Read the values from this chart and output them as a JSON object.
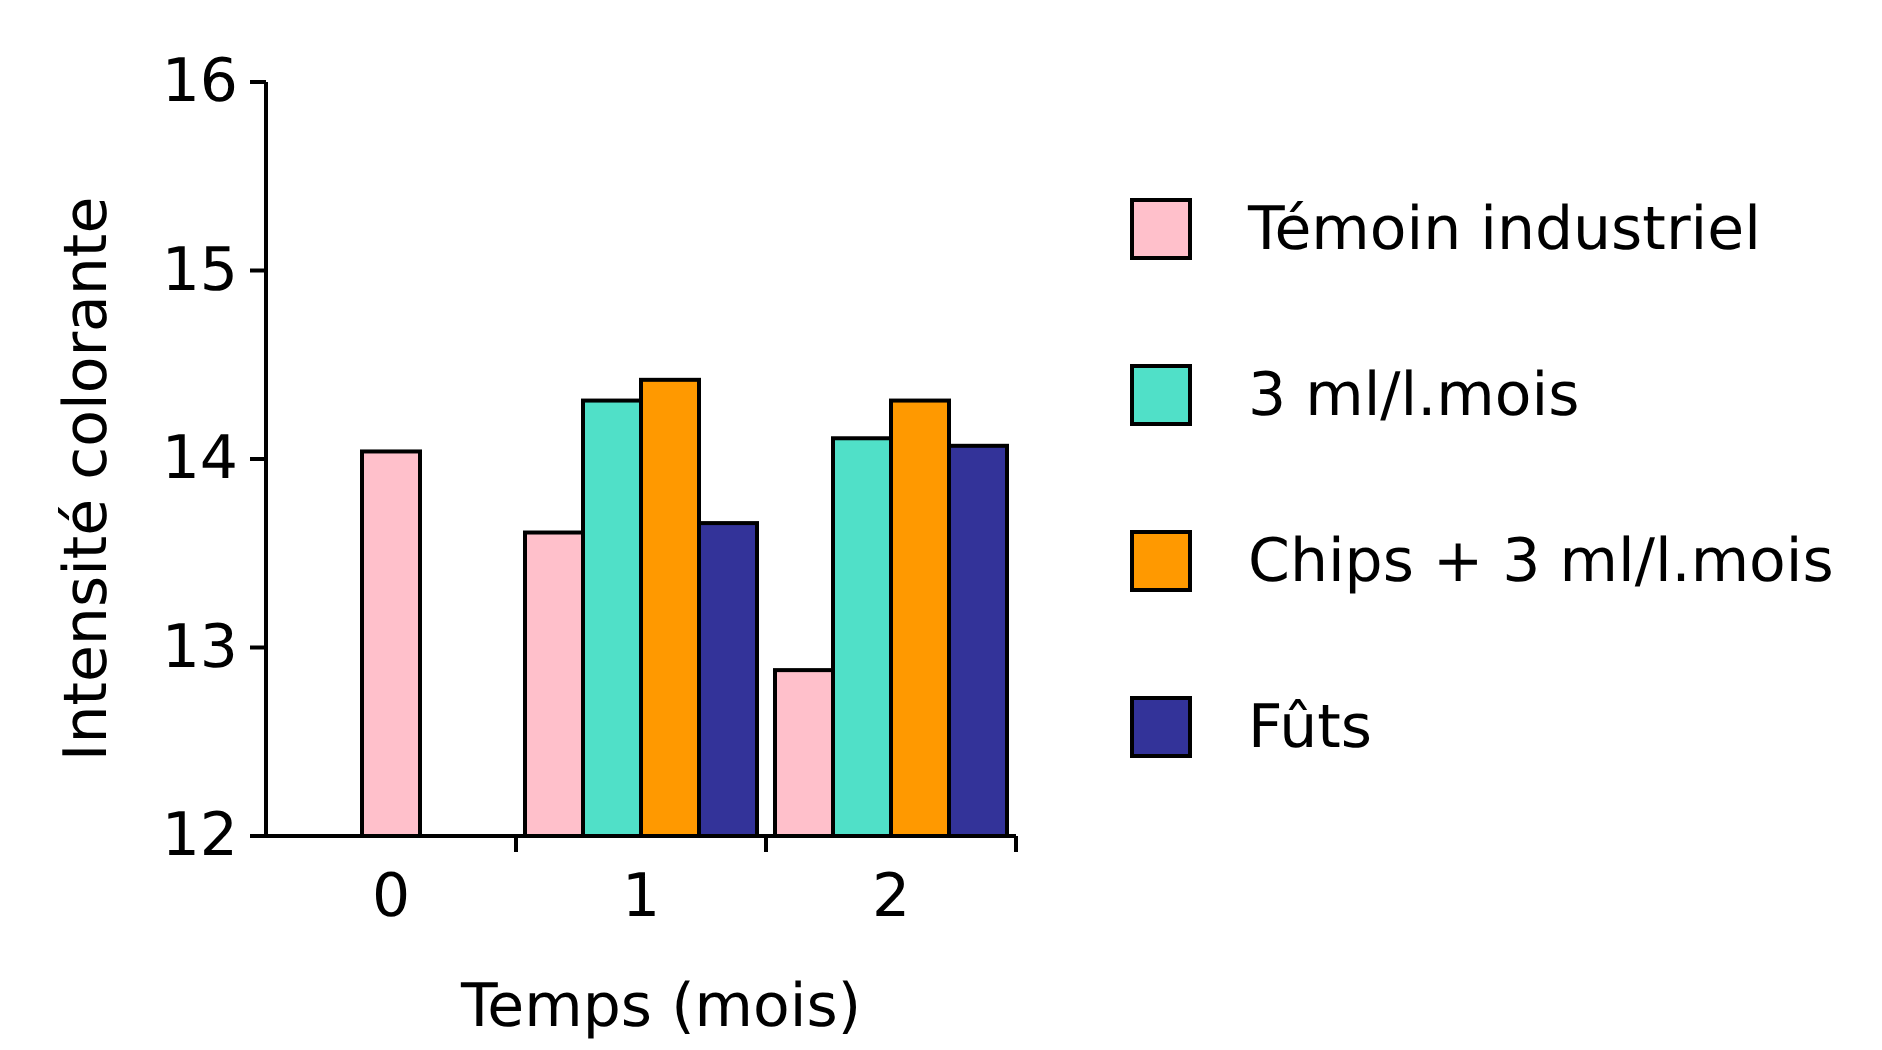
{
  "chart_data": {
    "type": "bar",
    "xlabel": "Temps (mois)",
    "ylabel": "Intensité colorante",
    "categories": [
      "0",
      "1",
      "2"
    ],
    "series": [
      {
        "name": "Témoin industriel",
        "color": "#ffc0cb",
        "values": [
          14.04,
          13.61,
          12.88
        ]
      },
      {
        "name": "3 ml/l.mois",
        "color": "#50e0c8",
        "values": [
          null,
          14.31,
          14.11
        ]
      },
      {
        "name": "Chips + 3 ml/l.mois",
        "color": "#ff9900",
        "values": [
          null,
          14.42,
          14.31
        ]
      },
      {
        "name": "Fûts",
        "color": "#333399",
        "values": [
          null,
          13.66,
          14.07
        ]
      }
    ],
    "ylim": [
      12,
      16
    ],
    "yticks": [
      12,
      13,
      14,
      15,
      16
    ],
    "legend": "right"
  }
}
